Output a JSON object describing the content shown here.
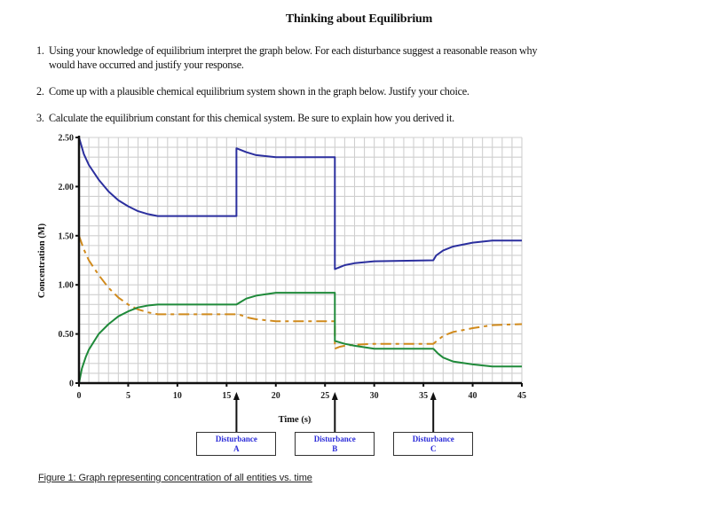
{
  "document": {
    "title": "Thinking about Equilibrium",
    "questions": [
      {
        "number": "1.",
        "lines": [
          "Using your knowledge of equilibrium interpret the graph below.  For each disturbance suggest a reasonable reason why",
          "would have occurred and justify your response."
        ]
      },
      {
        "number": "2.",
        "lines": [
          "Come up with a plausible chemical equilibrium system shown in the graph below.  Justify your choice."
        ]
      },
      {
        "number": "3.",
        "lines": [
          "Calculate the equilibrium constant for this chemical system. Be sure to explain how you derived it."
        ]
      }
    ],
    "caption": "Figure 1: Graph representing concentration of all entities vs. time",
    "disturbances": [
      {
        "label": "Disturbance",
        "letter": "A",
        "time": 16
      },
      {
        "label": "Disturbance",
        "letter": "B",
        "time": 26
      },
      {
        "label": "Disturbance",
        "letter": "C",
        "time": 36
      }
    ]
  },
  "chart_data": {
    "type": "line",
    "title": "",
    "xlabel": "Time (s)",
    "ylabel": "Concentration (M)",
    "xlim": [
      0,
      45
    ],
    "ylim": [
      0,
      2.5
    ],
    "x_ticks": [
      0,
      5,
      10,
      15,
      20,
      25,
      30,
      35,
      40,
      45
    ],
    "x_tick_labels": [
      "0",
      "5",
      "10",
      "15",
      "20",
      "25",
      "30",
      "35",
      "40",
      "45"
    ],
    "y_ticks": [
      0,
      0.5,
      1.0,
      1.5,
      2.0,
      2.5
    ],
    "y_tick_labels": [
      "0",
      "0.50",
      "1.00",
      "1.50",
      "2.00",
      "2.50"
    ],
    "grid": true,
    "grid_minor_x_step": 1,
    "grid_minor_y_step": 0.1,
    "legend": null,
    "annotations": [
      {
        "text": "Disturbance A",
        "x": 16
      },
      {
        "text": "Disturbance B",
        "x": 26
      },
      {
        "text": "Disturbance C",
        "x": 36
      }
    ],
    "series": [
      {
        "name": "blue species",
        "color": "#2b2f9e",
        "style": "solid",
        "points": [
          [
            0,
            2.5
          ],
          [
            0.5,
            2.33
          ],
          [
            1,
            2.22
          ],
          [
            2,
            2.07
          ],
          [
            3,
            1.95
          ],
          [
            4,
            1.86
          ],
          [
            5,
            1.8
          ],
          [
            6,
            1.75
          ],
          [
            7,
            1.72
          ],
          [
            8,
            1.7
          ],
          [
            16,
            1.7
          ],
          [
            16,
            2.39
          ],
          [
            17,
            2.35
          ],
          [
            18,
            2.32
          ],
          [
            20,
            2.3
          ],
          [
            26,
            2.3
          ],
          [
            26,
            1.16
          ],
          [
            27,
            1.2
          ],
          [
            28,
            1.22
          ],
          [
            30,
            1.24
          ],
          [
            36,
            1.25
          ],
          [
            36.3,
            1.3
          ],
          [
            37,
            1.35
          ],
          [
            38,
            1.39
          ],
          [
            40,
            1.43
          ],
          [
            42,
            1.45
          ],
          [
            45,
            1.45
          ]
        ]
      },
      {
        "name": "orange species",
        "color": "#d08a1c",
        "style": "dashdot",
        "points": [
          [
            0,
            1.5
          ],
          [
            0.5,
            1.36
          ],
          [
            1,
            1.25
          ],
          [
            2,
            1.1
          ],
          [
            3,
            0.97
          ],
          [
            4,
            0.87
          ],
          [
            5,
            0.8
          ],
          [
            6,
            0.75
          ],
          [
            7,
            0.72
          ],
          [
            8,
            0.7
          ],
          [
            16,
            0.7
          ],
          [
            16.5,
            0.69
          ],
          [
            17,
            0.67
          ],
          [
            18,
            0.65
          ],
          [
            20,
            0.63
          ],
          [
            26,
            0.63
          ],
          [
            26,
            0.35
          ],
          [
            26.5,
            0.37
          ],
          [
            27,
            0.38
          ],
          [
            28,
            0.39
          ],
          [
            30,
            0.4
          ],
          [
            36,
            0.4
          ],
          [
            36.5,
            0.44
          ],
          [
            37,
            0.48
          ],
          [
            38,
            0.52
          ],
          [
            40,
            0.56
          ],
          [
            42,
            0.59
          ],
          [
            45,
            0.6
          ]
        ]
      },
      {
        "name": "green species",
        "color": "#1f8a3a",
        "style": "solid",
        "points": [
          [
            0,
            0
          ],
          [
            0.3,
            0.15
          ],
          [
            0.7,
            0.27
          ],
          [
            1,
            0.34
          ],
          [
            2,
            0.5
          ],
          [
            3,
            0.6
          ],
          [
            4,
            0.68
          ],
          [
            5,
            0.73
          ],
          [
            6,
            0.77
          ],
          [
            7,
            0.79
          ],
          [
            8,
            0.8
          ],
          [
            16,
            0.8
          ],
          [
            16.5,
            0.83
          ],
          [
            17,
            0.86
          ],
          [
            18,
            0.89
          ],
          [
            20,
            0.92
          ],
          [
            26,
            0.92
          ],
          [
            26,
            0.43
          ],
          [
            27,
            0.4
          ],
          [
            28,
            0.38
          ],
          [
            30,
            0.35
          ],
          [
            36,
            0.35
          ],
          [
            36.5,
            0.3
          ],
          [
            37,
            0.26
          ],
          [
            38,
            0.22
          ],
          [
            40,
            0.19
          ],
          [
            42,
            0.17
          ],
          [
            45,
            0.17
          ]
        ]
      }
    ]
  }
}
